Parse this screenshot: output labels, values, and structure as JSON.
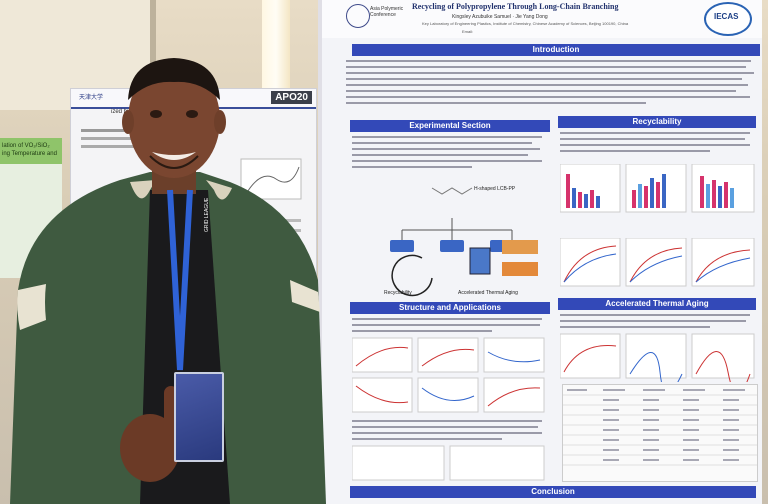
{
  "scene": {
    "description_colors": {
      "jacket": "#3f5a40",
      "poster_accent": "#3349b8"
    }
  },
  "left_poster": {
    "code": "APO20",
    "title_fragment": "ized by Linear Side Chains",
    "institution": "天津大学"
  },
  "green_poster": {
    "text_line1": "lation of VO₂/SiO₂",
    "text_line2": "ing Temperature and"
  },
  "main_poster": {
    "title": "Recycling of Polypropylene Through Long-Chain Branching",
    "authors": "Kingsley Azubuike Samuel · Jie Yang Dong",
    "affiliation": "Key Laboratory of Engineering Plastics, Institute of Chemistry, Chinese Academy of Sciences, Beijing 100190, China",
    "email_label": "Email:",
    "logo_right": "IECAS",
    "logo_left_text": "Asia Polymeric Conference",
    "sections": {
      "intro": "Introduction",
      "experimental": "Experimental Section",
      "recyclability": "Recyclability",
      "structure": "Structure and Applications",
      "aging": "Accelerated Thermal Aging",
      "conclusion": "Conclusion"
    },
    "diagram_labels": {
      "main": "H-shaped LCB-PP",
      "recyclability": "Recyclability",
      "aging": "Accelerated Thermal Aging"
    }
  },
  "badge": {
    "lanyard_text": "GRID LEAGUE"
  }
}
